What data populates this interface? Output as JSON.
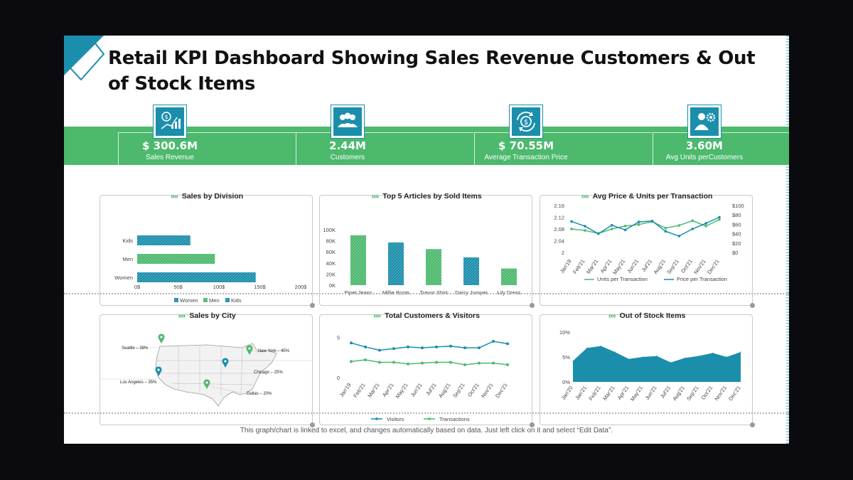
{
  "title": "Retail KPI Dashboard Showing Sales Revenue Customers & Out of Stock Items",
  "kpis": [
    {
      "value": "$ 300.6M",
      "label": "Sales Revenue",
      "icon": "money-chart-icon"
    },
    {
      "value": "2.44M",
      "label": "Customers",
      "icon": "people-icon"
    },
    {
      "value": "$ 70.55M",
      "label": "Average Transaction Price",
      "icon": "dollar-cycle-icon"
    },
    {
      "value": "3.60M",
      "label": "Avg Units perCustomers",
      "icon": "person-gear-icon"
    }
  ],
  "colors": {
    "teal": "#1b8eac",
    "green": "#4cb96d",
    "band": "#4cb96d"
  },
  "footnote": "This graph/chart is linked to excel, and changes automatically based on data. Just left click on it and select “Edit Data”.",
  "chart_data": [
    {
      "id": "division",
      "type": "bar",
      "orientation": "horizontal",
      "title": "Sales by Division",
      "categories": [
        "Women",
        "Men",
        "Kids"
      ],
      "values": [
        145,
        95,
        65
      ],
      "colors": [
        "#1b8eac",
        "#4cb96d",
        "#1b8eac"
      ],
      "xticks": [
        "0$",
        "50$",
        "100$",
        "150$",
        "200$"
      ],
      "xlim": [
        0,
        200
      ],
      "legend": [
        "Women",
        "Men",
        "Kids"
      ],
      "legend_colors": [
        "#1b8eac",
        "#4cb96d",
        "#1b8eac"
      ],
      "legend_position": "bottom"
    },
    {
      "id": "articles",
      "type": "bar",
      "title": "Top 5 Articles by Sold Items",
      "categories": [
        "Pipet Jeans",
        "Millie Boots",
        "Trevor Shirt",
        "Daisy Jumper",
        "Lily Dress"
      ],
      "values": [
        90000,
        77000,
        65000,
        50000,
        30000
      ],
      "colors": [
        "#4cb96d",
        "#1b8eac",
        "#4cb96d",
        "#1b8eac",
        "#4cb96d"
      ],
      "yticks": [
        "0K",
        "20K",
        "40K",
        "60K",
        "80K",
        "100K"
      ],
      "ylim": [
        0,
        100000
      ]
    },
    {
      "id": "avgprice",
      "type": "line",
      "title": "Avg Price & Units per Transaction",
      "categories": [
        "Jan'19",
        "Feb'21",
        "Mar'21",
        "Apr'21",
        "May'21",
        "Jun'21",
        "Jul'21",
        "Aug'21",
        "Sep'21",
        "Oct'21",
        "Nov'21",
        "Dec'21"
      ],
      "series": [
        {
          "name": "Units per Transaction",
          "axis": "left",
          "color": "#4cb96d",
          "values": [
            2.08,
            2.075,
            2.065,
            2.08,
            2.09,
            2.095,
            2.105,
            2.083,
            2.092,
            2.108,
            2.09,
            2.112
          ]
        },
        {
          "name": "Price per Transaction",
          "axis": "right",
          "color": "#1b8eac",
          "values": [
            66,
            56,
            40,
            58,
            48,
            65,
            67,
            45,
            35,
            50,
            62,
            75
          ]
        }
      ],
      "ylim_left": [
        2,
        2.16
      ],
      "yticks_left": [
        "2",
        "2.04",
        "2.08",
        "2.12",
        "2.16"
      ],
      "ylim_right": [
        0,
        100
      ],
      "yticks_right": [
        "$0",
        "$20",
        "$40",
        "$60",
        "$80",
        "$100"
      ],
      "legend_position": "bottom"
    },
    {
      "id": "customers",
      "type": "line",
      "title": "Total Customers & Visitors",
      "categories": [
        "Jan'19",
        "Feb'21",
        "Mar'21",
        "Apr'21",
        "May'21",
        "Jun'21",
        "Jul'21",
        "Aug'21",
        "Sep'21",
        "Oct'21",
        "Nov'21",
        "Dec'21"
      ],
      "series": [
        {
          "name": "Visitors",
          "color": "#1b8eac",
          "values": [
            4.3,
            3.8,
            3.4,
            3.6,
            3.8,
            3.7,
            3.8,
            3.9,
            3.7,
            3.7,
            4.5,
            4.2
          ]
        },
        {
          "name": "Transactions",
          "color": "#4cb96d",
          "values": [
            2.0,
            2.2,
            1.9,
            1.9,
            1.7,
            1.8,
            1.9,
            1.9,
            1.6,
            1.8,
            1.8,
            1.6
          ]
        }
      ],
      "ylim": [
        0,
        6
      ],
      "yticks": [
        "0",
        "5"
      ],
      "ytick_values": [
        0,
        5
      ],
      "legend_position": "bottom"
    },
    {
      "id": "outofstock",
      "type": "area",
      "title": "Out of Stock Items",
      "categories": [
        "Jan'20",
        "Jan'21",
        "Feb'21",
        "Mar'21",
        "Apr'21",
        "May'21",
        "Jun'21",
        "Jul'21",
        "Aug'21",
        "Sep'21",
        "Oct'21",
        "Nov'21",
        "Dec'21"
      ],
      "values": [
        4.2,
        6.8,
        7.2,
        6.0,
        4.6,
        5.0,
        5.2,
        3.9,
        4.8,
        5.2,
        5.8,
        5.0,
        6.0
      ],
      "color": "#1b8eac",
      "ylim": [
        0,
        10
      ],
      "yticks": [
        "0%",
        "5%",
        "10%"
      ],
      "ytick_values": [
        0,
        5,
        10
      ]
    },
    {
      "id": "city",
      "type": "map",
      "title": "Sales by City",
      "cities": [
        {
          "label": "Seattle – 38%"
        },
        {
          "label": "New York – 45%"
        },
        {
          "label": "Chicago – 25%"
        },
        {
          "label": "Los Angeles – 35%"
        },
        {
          "label": "Dallas – 20%"
        }
      ]
    }
  ]
}
